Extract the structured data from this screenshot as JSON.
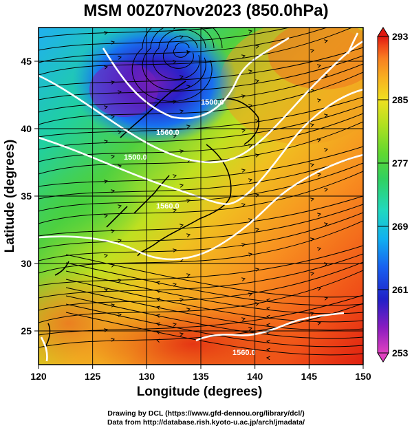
{
  "title": "MSM 00Z07Nov2023 (850.0hPa)",
  "axes": {
    "xlabel": "Longitude (degrees)",
    "ylabel": "Latitude  (degrees)",
    "xlim": [
      120,
      150
    ],
    "ylim": [
      22.5,
      47.5
    ],
    "xticks": [
      "120",
      "125",
      "130",
      "135",
      "140",
      "145",
      "150"
    ],
    "yticks": [
      "25",
      "30",
      "35",
      "40",
      "45"
    ],
    "grid": true
  },
  "colorbar": {
    "ticks": [
      "293",
      "285",
      "277",
      "269",
      "261",
      "253"
    ],
    "range": [
      253,
      293
    ],
    "colors": [
      "#e040c0",
      "#8a1cc0",
      "#2020c8",
      "#1860f0",
      "#10b0f0",
      "#20d8c0",
      "#30d060",
      "#60d830",
      "#b0e020",
      "#f0e020",
      "#f8b020",
      "#f88020",
      "#f04818",
      "#e01810"
    ]
  },
  "contours": {
    "labels": [
      "1560.0",
      "1500.0",
      "1560.0",
      "1560.0",
      "1500.0"
    ],
    "color": "#ffffff"
  },
  "credits": {
    "line1": "Drawing by DCL (https://www.gfd-dennou.org/library/dcl/)",
    "line2": "Data from http://database.rish.kyoto-u.ac.jp/arch/jmadata/"
  }
}
